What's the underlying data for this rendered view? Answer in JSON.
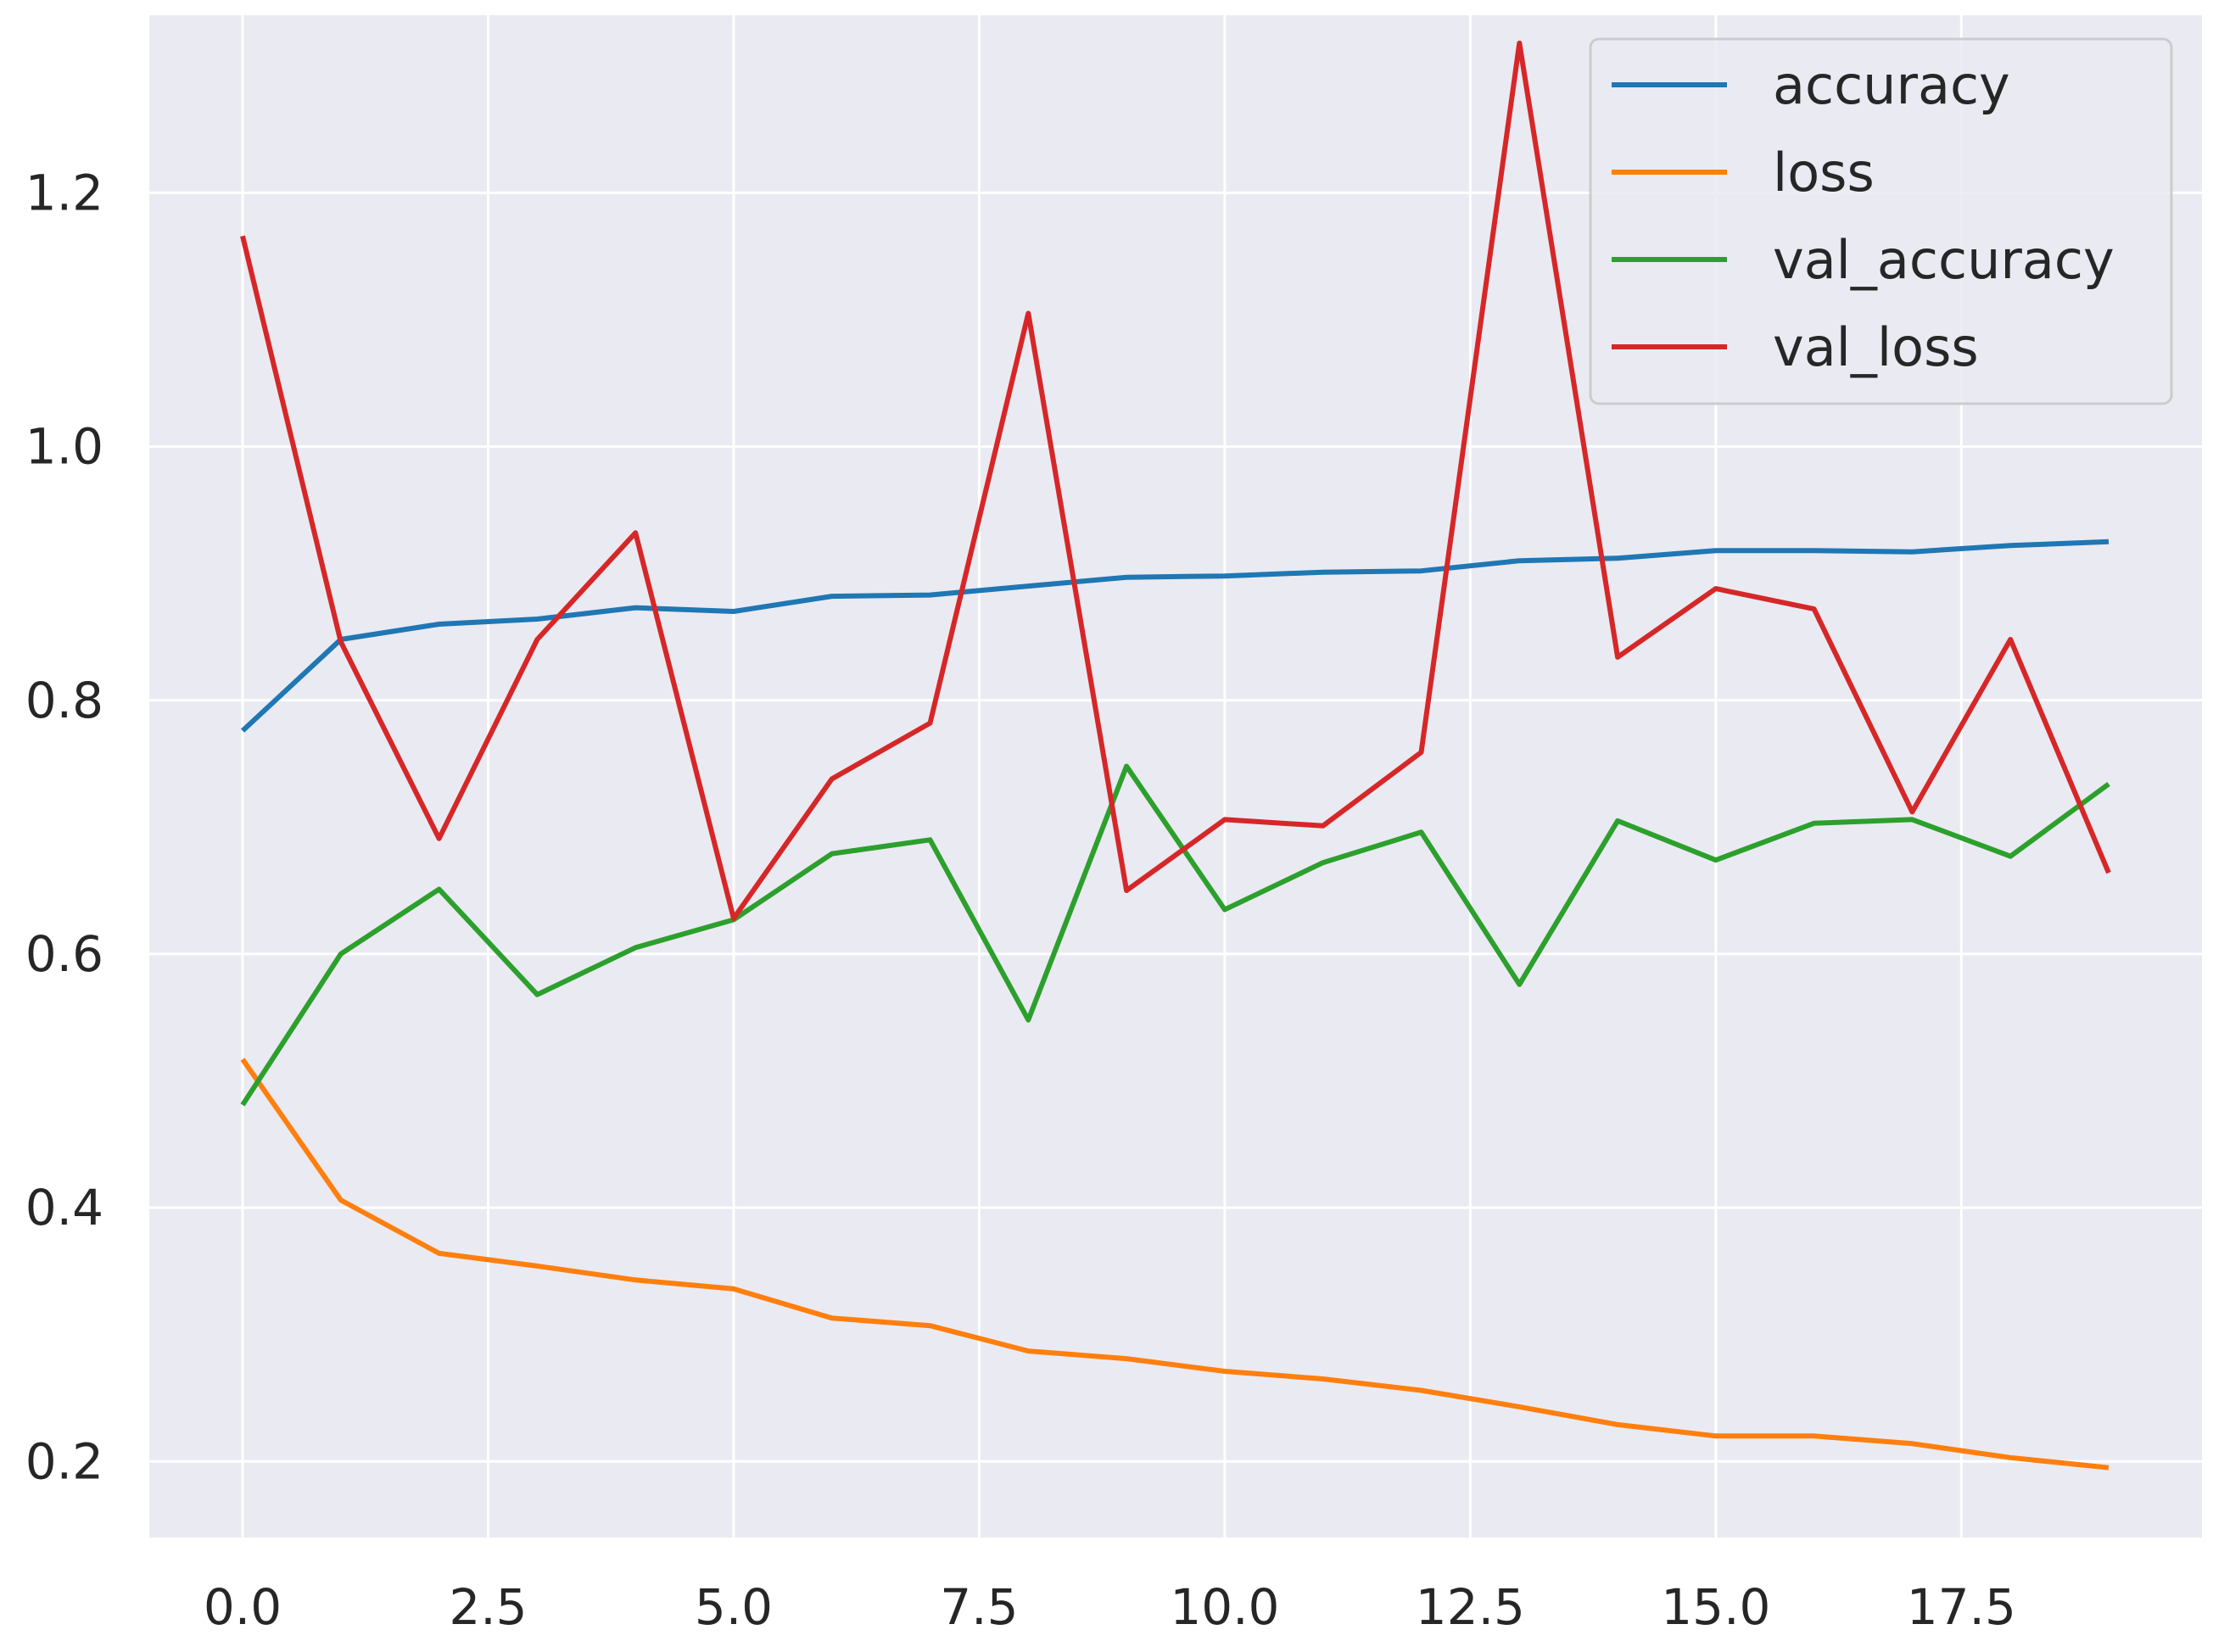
{
  "chart_data": {
    "type": "line",
    "title": "",
    "xlabel": "",
    "ylabel": "",
    "xlim": [
      -0.95,
      19.95
    ],
    "ylim": [
      0.14,
      1.34
    ],
    "grid": true,
    "legend_position": "top-right",
    "x_ticks": [
      "0.0",
      "2.5",
      "5.0",
      "7.5",
      "10.0",
      "12.5",
      "15.0",
      "17.5"
    ],
    "x_tick_values": [
      0,
      2.5,
      5,
      7.5,
      10,
      12.5,
      15,
      17.5
    ],
    "y_ticks": [
      "0.2",
      "0.4",
      "0.6",
      "0.8",
      "1.0",
      "1.2"
    ],
    "y_tick_values": [
      0.2,
      0.4,
      0.6,
      0.8,
      1.0,
      1.2
    ],
    "x": [
      0,
      1,
      2,
      3,
      4,
      5,
      6,
      7,
      8,
      9,
      10,
      11,
      12,
      13,
      14,
      15,
      16,
      17,
      18,
      19
    ],
    "series": [
      {
        "name": "accuracy",
        "color": "#1f77b4",
        "values": [
          0.776,
          0.848,
          0.86,
          0.864,
          0.873,
          0.87,
          0.882,
          0.883,
          0.89,
          0.897,
          0.898,
          0.901,
          0.902,
          0.91,
          0.912,
          0.918,
          0.918,
          0.917,
          0.922,
          0.925
        ]
      },
      {
        "name": "loss",
        "color": "#ff7f0e",
        "values": [
          0.517,
          0.406,
          0.364,
          0.354,
          0.343,
          0.336,
          0.313,
          0.307,
          0.287,
          0.281,
          0.271,
          0.265,
          0.256,
          0.243,
          0.229,
          0.22,
          0.22,
          0.214,
          0.203,
          0.195
        ]
      },
      {
        "name": "val_accuracy",
        "color": "#2ca02c",
        "values": [
          0.481,
          0.6,
          0.651,
          0.568,
          0.605,
          0.627,
          0.679,
          0.69,
          0.548,
          0.748,
          0.635,
          0.672,
          0.696,
          0.576,
          0.705,
          0.674,
          0.703,
          0.706,
          0.677,
          0.734
        ]
      },
      {
        "name": "val_loss",
        "color": "#d62728",
        "values": [
          1.166,
          0.846,
          0.691,
          0.848,
          0.932,
          0.628,
          0.738,
          0.782,
          1.105,
          0.65,
          0.706,
          0.701,
          0.759,
          1.318,
          0.834,
          0.888,
          0.872,
          0.712,
          0.848,
          0.664
        ]
      }
    ]
  }
}
